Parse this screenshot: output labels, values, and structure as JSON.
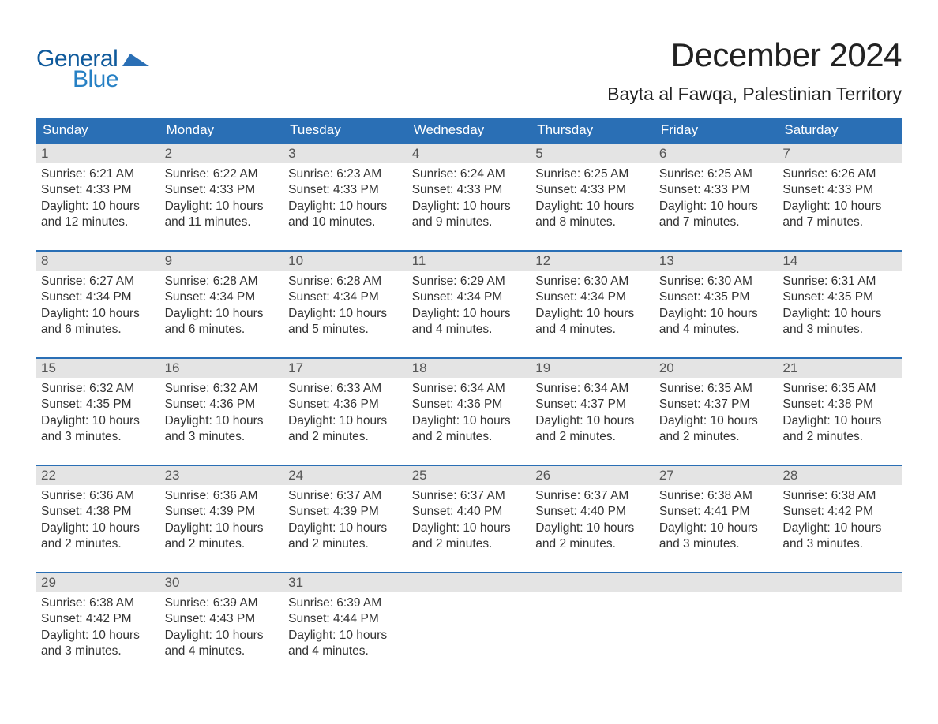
{
  "logo": {
    "word1": "General",
    "word2": "Blue",
    "mark_color": "#2a6fb5",
    "text1_color": "#0f5a9c",
    "text2_color": "#2680c4"
  },
  "title": "December 2024",
  "location": "Bayta al Fawqa, Palestinian Territory",
  "colors": {
    "header_bg": "#2a6fb5",
    "header_text": "#ffffff",
    "daynum_bg": "#e4e4e4",
    "daynum_text": "#555555",
    "body_text": "#333333",
    "page_bg": "#ffffff",
    "row_border": "#2a6fb5"
  },
  "weekdays": [
    "Sunday",
    "Monday",
    "Tuesday",
    "Wednesday",
    "Thursday",
    "Friday",
    "Saturday"
  ],
  "weeks": [
    [
      {
        "day": "1",
        "sunrise": "Sunrise: 6:21 AM",
        "sunset": "Sunset: 4:33 PM",
        "daylight": "Daylight: 10 hours and 12 minutes."
      },
      {
        "day": "2",
        "sunrise": "Sunrise: 6:22 AM",
        "sunset": "Sunset: 4:33 PM",
        "daylight": "Daylight: 10 hours and 11 minutes."
      },
      {
        "day": "3",
        "sunrise": "Sunrise: 6:23 AM",
        "sunset": "Sunset: 4:33 PM",
        "daylight": "Daylight: 10 hours and 10 minutes."
      },
      {
        "day": "4",
        "sunrise": "Sunrise: 6:24 AM",
        "sunset": "Sunset: 4:33 PM",
        "daylight": "Daylight: 10 hours and 9 minutes."
      },
      {
        "day": "5",
        "sunrise": "Sunrise: 6:25 AM",
        "sunset": "Sunset: 4:33 PM",
        "daylight": "Daylight: 10 hours and 8 minutes."
      },
      {
        "day": "6",
        "sunrise": "Sunrise: 6:25 AM",
        "sunset": "Sunset: 4:33 PM",
        "daylight": "Daylight: 10 hours and 7 minutes."
      },
      {
        "day": "7",
        "sunrise": "Sunrise: 6:26 AM",
        "sunset": "Sunset: 4:33 PM",
        "daylight": "Daylight: 10 hours and 7 minutes."
      }
    ],
    [
      {
        "day": "8",
        "sunrise": "Sunrise: 6:27 AM",
        "sunset": "Sunset: 4:34 PM",
        "daylight": "Daylight: 10 hours and 6 minutes."
      },
      {
        "day": "9",
        "sunrise": "Sunrise: 6:28 AM",
        "sunset": "Sunset: 4:34 PM",
        "daylight": "Daylight: 10 hours and 6 minutes."
      },
      {
        "day": "10",
        "sunrise": "Sunrise: 6:28 AM",
        "sunset": "Sunset: 4:34 PM",
        "daylight": "Daylight: 10 hours and 5 minutes."
      },
      {
        "day": "11",
        "sunrise": "Sunrise: 6:29 AM",
        "sunset": "Sunset: 4:34 PM",
        "daylight": "Daylight: 10 hours and 4 minutes."
      },
      {
        "day": "12",
        "sunrise": "Sunrise: 6:30 AM",
        "sunset": "Sunset: 4:34 PM",
        "daylight": "Daylight: 10 hours and 4 minutes."
      },
      {
        "day": "13",
        "sunrise": "Sunrise: 6:30 AM",
        "sunset": "Sunset: 4:35 PM",
        "daylight": "Daylight: 10 hours and 4 minutes."
      },
      {
        "day": "14",
        "sunrise": "Sunrise: 6:31 AM",
        "sunset": "Sunset: 4:35 PM",
        "daylight": "Daylight: 10 hours and 3 minutes."
      }
    ],
    [
      {
        "day": "15",
        "sunrise": "Sunrise: 6:32 AM",
        "sunset": "Sunset: 4:35 PM",
        "daylight": "Daylight: 10 hours and 3 minutes."
      },
      {
        "day": "16",
        "sunrise": "Sunrise: 6:32 AM",
        "sunset": "Sunset: 4:36 PM",
        "daylight": "Daylight: 10 hours and 3 minutes."
      },
      {
        "day": "17",
        "sunrise": "Sunrise: 6:33 AM",
        "sunset": "Sunset: 4:36 PM",
        "daylight": "Daylight: 10 hours and 2 minutes."
      },
      {
        "day": "18",
        "sunrise": "Sunrise: 6:34 AM",
        "sunset": "Sunset: 4:36 PM",
        "daylight": "Daylight: 10 hours and 2 minutes."
      },
      {
        "day": "19",
        "sunrise": "Sunrise: 6:34 AM",
        "sunset": "Sunset: 4:37 PM",
        "daylight": "Daylight: 10 hours and 2 minutes."
      },
      {
        "day": "20",
        "sunrise": "Sunrise: 6:35 AM",
        "sunset": "Sunset: 4:37 PM",
        "daylight": "Daylight: 10 hours and 2 minutes."
      },
      {
        "day": "21",
        "sunrise": "Sunrise: 6:35 AM",
        "sunset": "Sunset: 4:38 PM",
        "daylight": "Daylight: 10 hours and 2 minutes."
      }
    ],
    [
      {
        "day": "22",
        "sunrise": "Sunrise: 6:36 AM",
        "sunset": "Sunset: 4:38 PM",
        "daylight": "Daylight: 10 hours and 2 minutes."
      },
      {
        "day": "23",
        "sunrise": "Sunrise: 6:36 AM",
        "sunset": "Sunset: 4:39 PM",
        "daylight": "Daylight: 10 hours and 2 minutes."
      },
      {
        "day": "24",
        "sunrise": "Sunrise: 6:37 AM",
        "sunset": "Sunset: 4:39 PM",
        "daylight": "Daylight: 10 hours and 2 minutes."
      },
      {
        "day": "25",
        "sunrise": "Sunrise: 6:37 AM",
        "sunset": "Sunset: 4:40 PM",
        "daylight": "Daylight: 10 hours and 2 minutes."
      },
      {
        "day": "26",
        "sunrise": "Sunrise: 6:37 AM",
        "sunset": "Sunset: 4:40 PM",
        "daylight": "Daylight: 10 hours and 2 minutes."
      },
      {
        "day": "27",
        "sunrise": "Sunrise: 6:38 AM",
        "sunset": "Sunset: 4:41 PM",
        "daylight": "Daylight: 10 hours and 3 minutes."
      },
      {
        "day": "28",
        "sunrise": "Sunrise: 6:38 AM",
        "sunset": "Sunset: 4:42 PM",
        "daylight": "Daylight: 10 hours and 3 minutes."
      }
    ],
    [
      {
        "day": "29",
        "sunrise": "Sunrise: 6:38 AM",
        "sunset": "Sunset: 4:42 PM",
        "daylight": "Daylight: 10 hours and 3 minutes."
      },
      {
        "day": "30",
        "sunrise": "Sunrise: 6:39 AM",
        "sunset": "Sunset: 4:43 PM",
        "daylight": "Daylight: 10 hours and 4 minutes."
      },
      {
        "day": "31",
        "sunrise": "Sunrise: 6:39 AM",
        "sunset": "Sunset: 4:44 PM",
        "daylight": "Daylight: 10 hours and 4 minutes."
      },
      null,
      null,
      null,
      null
    ]
  ],
  "typography": {
    "title_fontsize": 42,
    "location_fontsize": 23,
    "weekday_fontsize": 17,
    "daynum_fontsize": 17,
    "body_fontsize": 15.5,
    "font_family": "Arial"
  }
}
